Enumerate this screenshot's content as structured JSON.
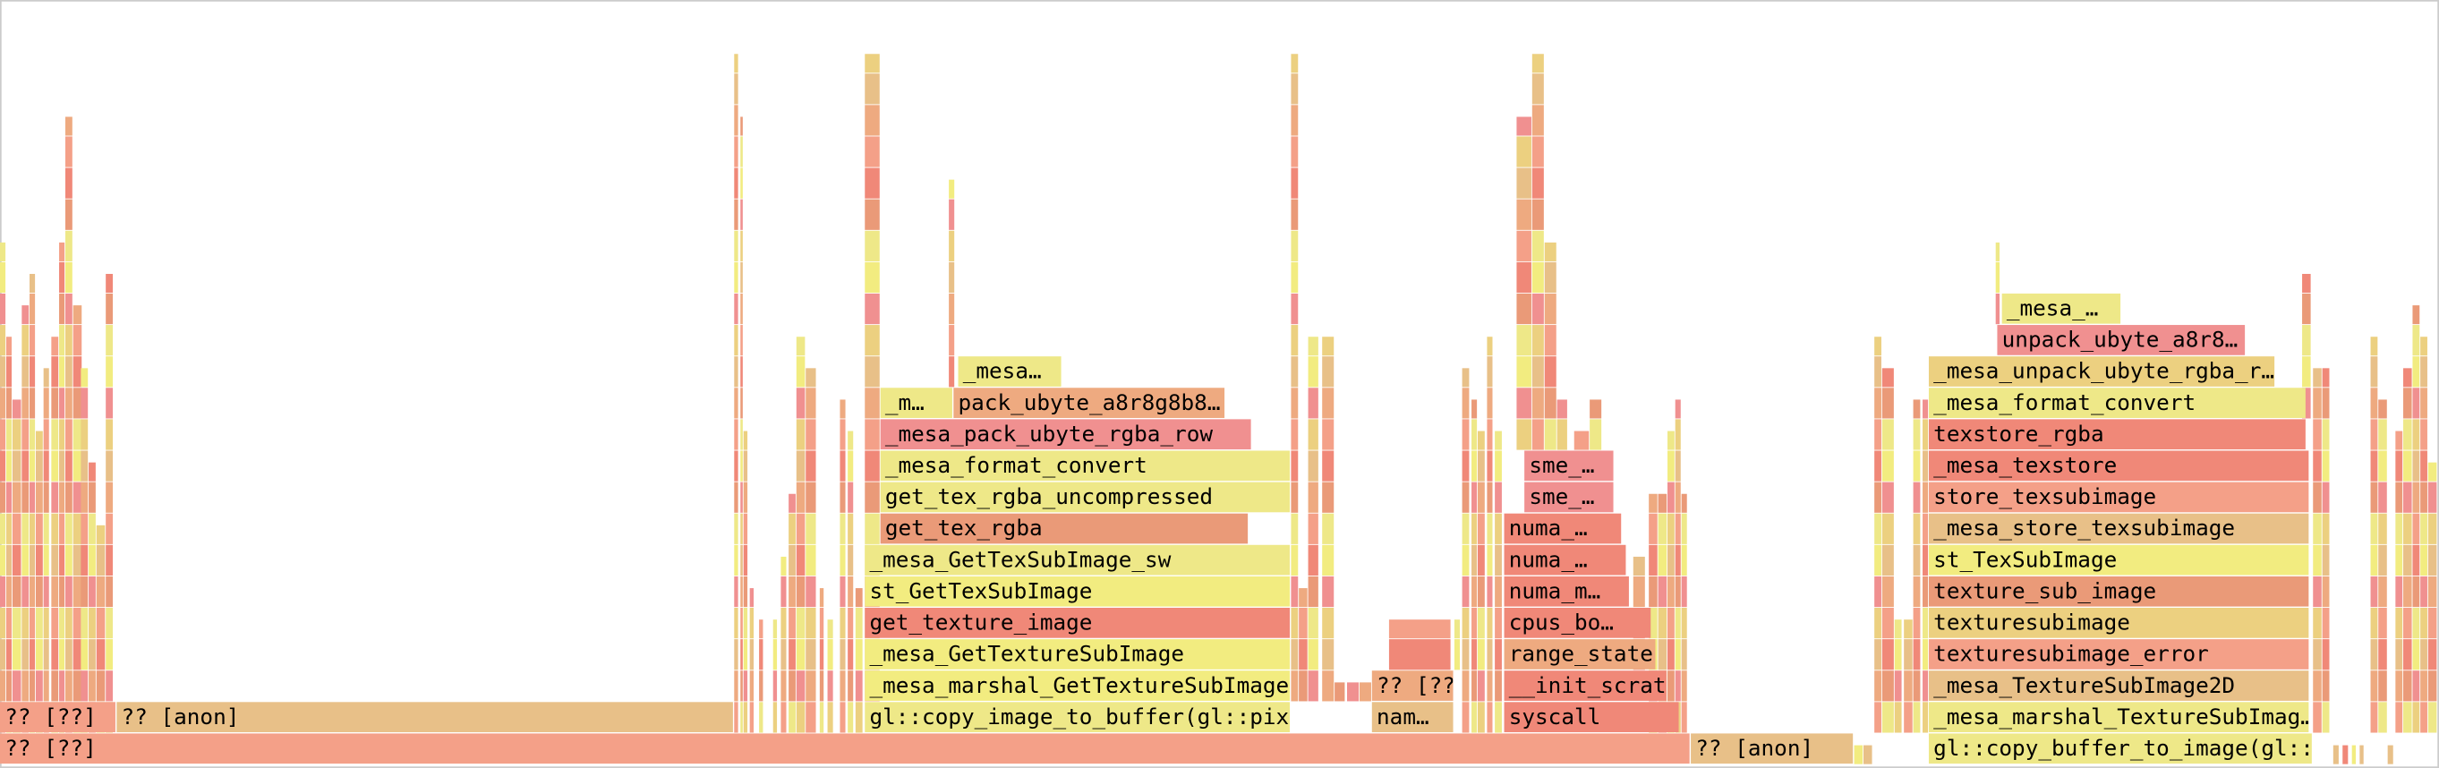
{
  "frames": [
    {
      "label": "?? [??]"
    },
    {
      "label": "?? [anon]"
    },
    {
      "label": "gl::copy_buffer_to_image(gl::p"
    },
    {
      "label": "?? [??]"
    },
    {
      "label": "?? [anon]"
    },
    {
      "label": "gl::copy_image_to_buffer(gl::pixe"
    },
    {
      "label": "nam…"
    },
    {
      "label": "syscall"
    },
    {
      "label": "_mesa_marshal_TextureSubImag…"
    },
    {
      "label": "_mesa_marshal_GetTextureSubImage"
    },
    {
      "label": "?? [??"
    },
    {
      "label": "__init_scrat"
    },
    {
      "label": "_mesa_TextureSubImage2D"
    },
    {
      "label": "_mesa_GetTextureSubImage"
    },
    {
      "label": "range_state"
    },
    {
      "label": "texturesubimage_error"
    },
    {
      "label": "get_texture_image"
    },
    {
      "label": "cpus_bo…"
    },
    {
      "label": "texturesubimage"
    },
    {
      "label": "st_GetTexSubImage"
    },
    {
      "label": "numa_m…"
    },
    {
      "label": "texture_sub_image"
    },
    {
      "label": "_mesa_GetTexSubImage_sw"
    },
    {
      "label": "numa_…"
    },
    {
      "label": "st_TexSubImage"
    },
    {
      "label": "get_tex_rgba"
    },
    {
      "label": "numa_…"
    },
    {
      "label": "_mesa_store_texsubimage"
    },
    {
      "label": "get_tex_rgba_uncompressed"
    },
    {
      "label": "sme_…"
    },
    {
      "label": "store_texsubimage"
    },
    {
      "label": "_mesa_format_convert"
    },
    {
      "label": "sme_…"
    },
    {
      "label": "_mesa_texstore"
    },
    {
      "label": "_mesa_pack_ubyte_rgba_row"
    },
    {
      "label": "texstore_rgba"
    },
    {
      "label": "_m…"
    },
    {
      "label": "pack_ubyte_a8r8g8b8…"
    },
    {
      "label": "_mesa_format_convert"
    },
    {
      "label": "_mesa…"
    },
    {
      "label": "_mesa_unpack_ubyte_rgba_r…"
    },
    {
      "label": "unpack_ubyte_a8r8…"
    },
    {
      "label": "_mesa_…"
    }
  ]
}
